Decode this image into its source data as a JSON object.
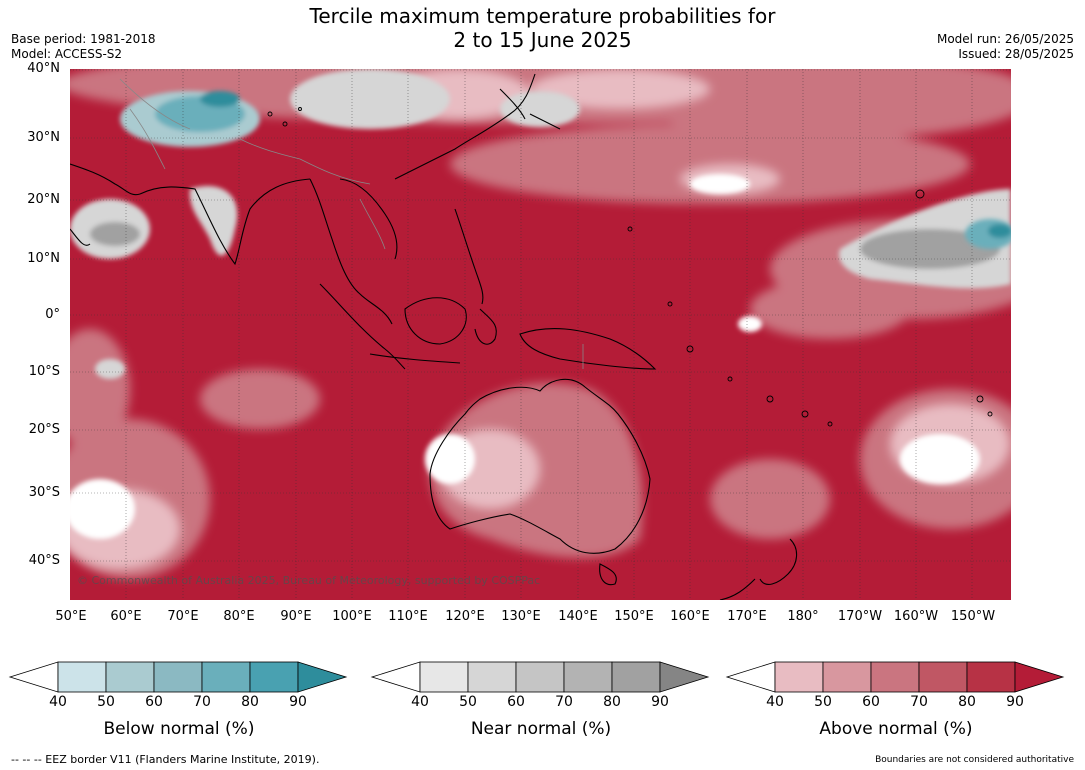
{
  "title_line1": "Tercile maximum temperature probabilities for",
  "title_line2": "2 to 15 June 2025",
  "meta_left": [
    "Base period: 1981-2018",
    "Model: ACCESS-S2"
  ],
  "meta_right": [
    "Model run: 26/05/2025",
    "Issued: 28/05/2025"
  ],
  "latitudes": [
    "40°N",
    "30°N",
    "20°N",
    "10°N",
    "0°",
    "10°S",
    "20°S",
    "30°S",
    "40°S"
  ],
  "longitudes": [
    "50°E",
    "60°E",
    "70°E",
    "80°E",
    "90°E",
    "100°E",
    "110°E",
    "120°E",
    "130°E",
    "140°E",
    "150°E",
    "160°E",
    "170°E",
    "180°",
    "170°W",
    "160°W",
    "150°W"
  ],
  "copyright": "© Commonwealth of Australia 2025, Bureau of Meteorology, supported by COSPPac",
  "colorbars": [
    {
      "title": "Below normal (%)",
      "ticks": [
        "40",
        "50",
        "60",
        "70",
        "80",
        "90"
      ],
      "colors": [
        "#ffffff",
        "#cce3e9",
        "#aacbd0",
        "#8bb9c2",
        "#6aafbb",
        "#49a1b1",
        "#2e8d9c"
      ]
    },
    {
      "title": "Near normal (%)",
      "ticks": [
        "40",
        "50",
        "60",
        "70",
        "80",
        "90"
      ],
      "colors": [
        "#ffffff",
        "#e7e7e7",
        "#d6d6d6",
        "#c5c5c5",
        "#b3b3b3",
        "#a1a1a1",
        "#858585"
      ]
    },
    {
      "title": "Above normal (%)",
      "ticks": [
        "40",
        "50",
        "60",
        "70",
        "80",
        "90"
      ],
      "colors": [
        "#ffffff",
        "#e8bcc2",
        "#d8979f",
        "#ca7580",
        "#c05764",
        "#b73245",
        "#b41c37"
      ]
    }
  ],
  "footer_left": "--  --  -- EEZ border V11 (Flanders Marine Institute, 2019).",
  "footer_right": "Boundaries are not considered authoritative",
  "map_colors": {
    "dominant": "#b41c37",
    "above_mid": "#ca7580",
    "above_light": "#e8bcc2",
    "near": "#d6d6d6",
    "near_dark": "#a1a1a1",
    "below": "#6aafbb",
    "below_dark": "#2e8d9c"
  }
}
